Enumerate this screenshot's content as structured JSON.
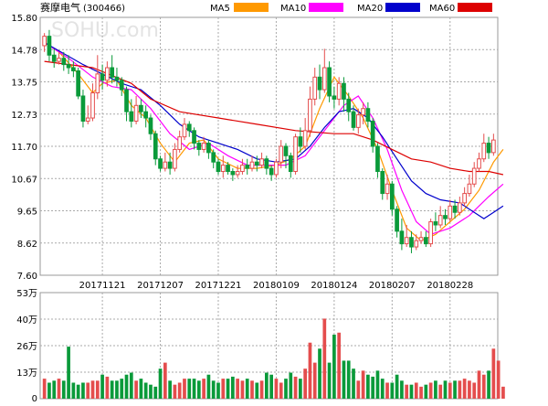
{
  "header": {
    "stock_name": "赛摩电气",
    "stock_code": "(300466)",
    "watermark": "SOHU.com",
    "legend": [
      {
        "label": "MA5",
        "color": "#ff9900"
      },
      {
        "label": "MA10",
        "color": "#ff00ff"
      },
      {
        "label": "MA20",
        "color": "#0000cc"
      },
      {
        "label": "MA60",
        "color": "#dd0000"
      }
    ]
  },
  "colors": {
    "up": "#e44d4d",
    "down": "#0a9a3a",
    "grid": "#999999",
    "axis_text": "#000000"
  },
  "chart_data": [
    {
      "type": "candlestick",
      "y_ticks": [
        "15.80",
        "14.78",
        "13.75",
        "12.73",
        "11.70",
        "10.67",
        "9.65",
        "8.62",
        "7.60"
      ],
      "ylim": [
        7.6,
        15.8
      ],
      "x_labels": [
        "20171121",
        "20171207",
        "20171221",
        "20180109",
        "20180124",
        "20180207",
        "20180228"
      ],
      "x_label_index": [
        12,
        24,
        36,
        48,
        60,
        72,
        84
      ],
      "candles": [
        [
          14.9,
          15.2,
          15.3,
          14.7
        ],
        [
          15.2,
          14.6,
          15.4,
          14.4
        ],
        [
          14.6,
          14.4,
          14.8,
          14.2
        ],
        [
          14.4,
          14.5,
          14.7,
          14.3
        ],
        [
          14.5,
          14.3,
          14.7,
          14.1
        ],
        [
          14.3,
          14.2,
          14.6,
          14.0
        ],
        [
          14.2,
          14.1,
          14.4,
          13.9
        ],
        [
          14.1,
          13.3,
          14.2,
          13.2
        ],
        [
          13.3,
          12.5,
          13.5,
          12.3
        ],
        [
          12.5,
          12.6,
          13.0,
          12.4
        ],
        [
          12.6,
          13.4,
          13.7,
          12.5
        ],
        [
          13.4,
          14.0,
          14.6,
          13.2
        ],
        [
          14.0,
          13.8,
          14.3,
          13.5
        ],
        [
          13.8,
          14.2,
          14.4,
          13.6
        ],
        [
          14.2,
          13.9,
          14.6,
          13.7
        ],
        [
          13.9,
          13.8,
          14.2,
          13.6
        ],
        [
          13.8,
          13.5,
          13.9,
          13.3
        ],
        [
          13.5,
          12.8,
          13.6,
          12.5
        ],
        [
          12.8,
          12.5,
          13.2,
          12.3
        ],
        [
          12.5,
          13.0,
          13.3,
          12.4
        ],
        [
          13.0,
          12.8,
          13.2,
          12.6
        ],
        [
          12.8,
          12.6,
          13.0,
          12.3
        ],
        [
          12.6,
          12.1,
          12.7,
          11.9
        ],
        [
          12.1,
          11.3,
          12.2,
          11.1
        ],
        [
          11.3,
          11.0,
          11.4,
          10.9
        ],
        [
          11.0,
          11.2,
          11.5,
          10.9
        ],
        [
          11.2,
          11.0,
          11.5,
          10.8
        ],
        [
          11.0,
          11.6,
          11.8,
          10.9
        ],
        [
          11.6,
          12.0,
          12.2,
          11.5
        ],
        [
          12.0,
          12.4,
          12.6,
          11.9
        ],
        [
          12.4,
          12.2,
          12.5,
          12.0
        ],
        [
          12.2,
          11.8,
          12.3,
          11.6
        ],
        [
          11.8,
          11.6,
          11.9,
          11.4
        ],
        [
          11.6,
          11.8,
          12.0,
          11.5
        ],
        [
          11.8,
          11.5,
          11.9,
          11.3
        ],
        [
          11.5,
          11.2,
          11.6,
          11.0
        ],
        [
          11.2,
          10.9,
          11.3,
          10.8
        ],
        [
          10.9,
          11.1,
          11.4,
          10.7
        ],
        [
          11.1,
          10.9,
          11.2,
          10.8
        ],
        [
          10.9,
          10.8,
          11.0,
          10.6
        ],
        [
          10.8,
          10.9,
          11.1,
          10.7
        ],
        [
          10.9,
          11.1,
          11.3,
          10.8
        ],
        [
          11.1,
          11.0,
          11.3,
          10.8
        ],
        [
          11.0,
          11.2,
          11.4,
          10.9
        ],
        [
          11.2,
          11.1,
          11.4,
          10.9
        ],
        [
          11.1,
          11.3,
          11.5,
          11.0
        ],
        [
          11.3,
          11.0,
          11.4,
          10.8
        ],
        [
          11.0,
          10.8,
          11.1,
          10.6
        ],
        [
          10.8,
          11.2,
          11.3,
          10.7
        ],
        [
          11.2,
          11.7,
          11.9,
          11.0
        ],
        [
          11.7,
          11.4,
          11.8,
          11.0
        ],
        [
          11.4,
          10.9,
          11.5,
          10.7
        ],
        [
          10.9,
          12.0,
          12.1,
          10.8
        ],
        [
          12.0,
          11.7,
          12.3,
          11.5
        ],
        [
          11.7,
          12.2,
          12.6,
          11.6
        ],
        [
          12.2,
          13.2,
          13.6,
          12.0
        ],
        [
          13.2,
          13.9,
          14.2,
          13.0
        ],
        [
          13.9,
          13.5,
          14.3,
          13.2
        ],
        [
          13.5,
          14.2,
          14.8,
          13.4
        ],
        [
          14.2,
          13.3,
          14.4,
          13.1
        ],
        [
          13.3,
          13.2,
          13.6,
          12.9
        ],
        [
          13.2,
          13.7,
          13.9,
          13.0
        ],
        [
          13.7,
          13.2,
          13.9,
          12.8
        ],
        [
          13.2,
          12.8,
          13.4,
          12.5
        ],
        [
          12.8,
          12.3,
          13.0,
          12.2
        ],
        [
          12.3,
          12.7,
          12.9,
          12.1
        ],
        [
          12.7,
          12.9,
          13.1,
          12.4
        ],
        [
          12.9,
          12.5,
          13.1,
          12.3
        ],
        [
          12.5,
          11.7,
          12.6,
          11.5
        ],
        [
          11.7,
          10.9,
          11.8,
          10.7
        ],
        [
          10.9,
          10.2,
          11.0,
          10.0
        ],
        [
          10.2,
          10.5,
          10.8,
          10.0
        ],
        [
          10.5,
          9.7,
          10.6,
          9.5
        ],
        [
          9.7,
          9.0,
          9.8,
          8.8
        ],
        [
          9.0,
          8.6,
          9.4,
          8.4
        ],
        [
          8.6,
          8.8,
          9.2,
          8.5
        ],
        [
          8.8,
          8.5,
          9.0,
          8.3
        ],
        [
          8.5,
          8.7,
          8.9,
          8.4
        ],
        [
          8.7,
          8.8,
          9.0,
          8.6
        ],
        [
          8.8,
          8.6,
          9.0,
          8.5
        ],
        [
          8.6,
          9.3,
          9.4,
          8.5
        ],
        [
          9.3,
          9.2,
          9.6,
          9.0
        ],
        [
          9.2,
          9.5,
          9.8,
          9.1
        ],
        [
          9.5,
          9.4,
          9.7,
          9.2
        ],
        [
          9.4,
          9.8,
          10.0,
          9.3
        ],
        [
          9.8,
          9.6,
          10.0,
          9.4
        ],
        [
          9.6,
          9.9,
          10.1,
          9.5
        ],
        [
          9.9,
          10.2,
          10.4,
          9.8
        ],
        [
          10.2,
          10.5,
          10.8,
          10.1
        ],
        [
          10.5,
          11.0,
          11.2,
          10.4
        ],
        [
          11.0,
          11.3,
          11.5,
          10.9
        ],
        [
          11.3,
          11.8,
          12.1,
          11.2
        ],
        [
          11.8,
          11.5,
          12.0,
          11.3
        ],
        [
          11.5,
          11.9,
          12.1,
          11.4
        ]
      ],
      "ma_series": [
        {
          "name": "MA5",
          "color": "#ff9900",
          "points": [
            [
              0,
              15.0
            ],
            [
              3,
              14.7
            ],
            [
              7,
              14.0
            ],
            [
              10,
              13.4
            ],
            [
              12,
              13.7
            ],
            [
              15,
              13.8
            ],
            [
              18,
              13.0
            ],
            [
              21,
              12.6
            ],
            [
              24,
              11.8
            ],
            [
              27,
              11.2
            ],
            [
              30,
              11.8
            ],
            [
              33,
              11.9
            ],
            [
              36,
              11.3
            ],
            [
              40,
              11.0
            ],
            [
              44,
              11.0
            ],
            [
              48,
              11.1
            ],
            [
              51,
              11.3
            ],
            [
              54,
              11.7
            ],
            [
              57,
              12.9
            ],
            [
              60,
              13.9
            ],
            [
              63,
              13.3
            ],
            [
              66,
              12.6
            ],
            [
              69,
              11.6
            ],
            [
              72,
              10.3
            ],
            [
              75,
              9.1
            ],
            [
              78,
              8.7
            ],
            [
              81,
              8.9
            ],
            [
              84,
              9.3
            ],
            [
              87,
              9.7
            ],
            [
              90,
              10.3
            ],
            [
              93,
              11.2
            ],
            [
              95,
              11.6
            ]
          ]
        },
        {
          "name": "MA10",
          "color": "#ff00ff",
          "points": [
            [
              0,
              15.0
            ],
            [
              5,
              14.5
            ],
            [
              10,
              13.9
            ],
            [
              14,
              13.6
            ],
            [
              18,
              13.5
            ],
            [
              22,
              12.9
            ],
            [
              26,
              12.1
            ],
            [
              30,
              11.6
            ],
            [
              34,
              11.8
            ],
            [
              38,
              11.4
            ],
            [
              42,
              11.1
            ],
            [
              46,
              11.1
            ],
            [
              50,
              11.1
            ],
            [
              54,
              11.4
            ],
            [
              58,
              12.2
            ],
            [
              62,
              13.0
            ],
            [
              65,
              13.3
            ],
            [
              68,
              12.6
            ],
            [
              71,
              11.6
            ],
            [
              74,
              10.3
            ],
            [
              77,
              9.3
            ],
            [
              80,
              8.9
            ],
            [
              84,
              9.1
            ],
            [
              88,
              9.5
            ],
            [
              92,
              10.1
            ],
            [
              95,
              10.5
            ]
          ]
        },
        {
          "name": "MA20",
          "color": "#0000cc",
          "points": [
            [
              0,
              15.0
            ],
            [
              8,
              14.3
            ],
            [
              12,
              14.0
            ],
            [
              16,
              13.7
            ],
            [
              20,
              13.5
            ],
            [
              24,
              13.0
            ],
            [
              28,
              12.4
            ],
            [
              32,
              12.0
            ],
            [
              36,
              11.8
            ],
            [
              40,
              11.6
            ],
            [
              44,
              11.3
            ],
            [
              48,
              11.2
            ],
            [
              52,
              11.3
            ],
            [
              55,
              11.7
            ],
            [
              58,
              12.3
            ],
            [
              61,
              12.8
            ],
            [
              64,
              12.9
            ],
            [
              67,
              12.6
            ],
            [
              70,
              12.0
            ],
            [
              73,
              11.3
            ],
            [
              76,
              10.6
            ],
            [
              79,
              10.2
            ],
            [
              82,
              10.0
            ],
            [
              86,
              9.9
            ],
            [
              89,
              9.6
            ],
            [
              91,
              9.4
            ],
            [
              93,
              9.6
            ],
            [
              95,
              9.8
            ]
          ]
        },
        {
          "name": "MA60",
          "color": "#dd0000",
          "points": [
            [
              0,
              14.4
            ],
            [
              10,
              14.2
            ],
            [
              18,
              13.7
            ],
            [
              22,
              13.2
            ],
            [
              28,
              12.8
            ],
            [
              36,
              12.6
            ],
            [
              44,
              12.4
            ],
            [
              52,
              12.2
            ],
            [
              60,
              12.1
            ],
            [
              64,
              12.1
            ],
            [
              68,
              11.9
            ],
            [
              72,
              11.6
            ],
            [
              76,
              11.3
            ],
            [
              80,
              11.2
            ],
            [
              84,
              11.0
            ],
            [
              88,
              10.9
            ],
            [
              92,
              10.9
            ],
            [
              95,
              10.8
            ]
          ]
        }
      ]
    },
    {
      "type": "bar",
      "name": "volume",
      "unit": "万",
      "y_ticks": [
        "53万",
        "40万",
        "26万",
        "13万",
        "0"
      ],
      "ylim": [
        0,
        53
      ],
      "values": [
        10,
        8,
        9,
        10,
        9,
        26,
        8,
        7,
        8,
        8,
        9,
        9,
        12,
        11,
        9,
        9,
        10,
        12,
        13,
        9,
        10,
        8,
        7,
        6,
        15,
        18,
        9,
        7,
        8,
        10,
        10,
        10,
        9,
        10,
        12,
        9,
        8,
        10,
        10,
        11,
        10,
        9,
        10,
        9,
        8,
        9,
        13,
        12,
        10,
        8,
        10,
        13,
        11,
        10,
        15,
        28,
        18,
        25,
        40,
        18,
        32,
        33,
        19,
        19,
        15,
        9,
        14,
        12,
        11,
        14,
        10,
        8,
        8,
        12,
        9,
        7,
        7,
        8,
        6,
        7,
        8,
        9,
        7,
        9,
        8,
        9,
        9,
        10,
        9,
        8,
        14,
        12,
        14,
        25,
        19,
        6
      ]
    }
  ]
}
